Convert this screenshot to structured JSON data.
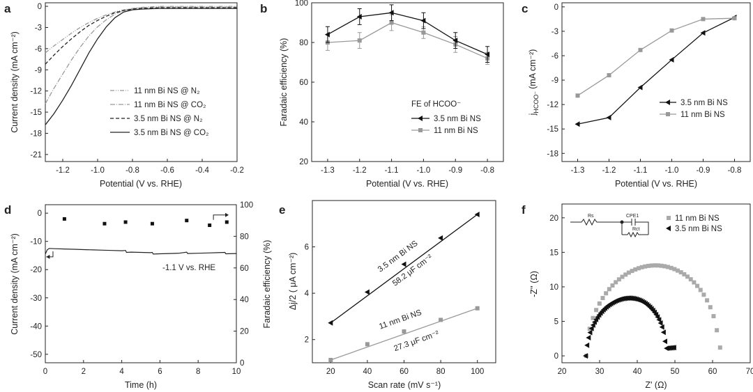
{
  "chart_data": [
    {
      "panel": "a",
      "type": "line",
      "xlabel": "Potential (V vs. RHE)",
      "ylabel": "Current density (mA cm⁻²)",
      "xlim": [
        -1.3,
        -0.2
      ],
      "ylim": [
        -22,
        0.5
      ],
      "xticks": [
        -1.2,
        -1.0,
        -0.8,
        -0.6,
        -0.4,
        -0.2
      ],
      "xtick_labels": [
        "-1.2",
        "-1.0",
        "-0.8",
        "-0.6",
        "-0.4",
        "-0.2"
      ],
      "yticks": [
        0,
        -3,
        -6,
        -9,
        -12,
        -15,
        -18,
        -21
      ],
      "ytick_labels": [
        "0",
        "-3",
        "-6",
        "-9",
        "-12",
        "-15",
        "-18",
        "-21"
      ],
      "legend": "bottom-right",
      "series": [
        {
          "name": "11 nm Bi NS @ N₂",
          "color": "#999999",
          "dash": "6,2,1,2,1,2",
          "x": [
            -1.3,
            -1.25,
            -1.2,
            -1.15,
            -1.1,
            -1.05,
            -1.0,
            -0.95,
            -0.9,
            -0.85,
            -0.8,
            -0.75,
            -0.7,
            -0.65,
            -0.6,
            -0.5,
            -0.4,
            -0.3,
            -0.2
          ],
          "y": [
            -6.6,
            -5.6,
            -4.7,
            -3.8,
            -3.0,
            -2.3,
            -1.7,
            -1.2,
            -0.8,
            -0.5,
            -0.3,
            -0.15,
            -0.08,
            0.0,
            0.0,
            0.0,
            0.0,
            0.0,
            0.0
          ]
        },
        {
          "name": "11 nm Bi NS @ CO₂",
          "color": "#999999",
          "dash": "7,2,1,2",
          "x": [
            -1.3,
            -1.25,
            -1.2,
            -1.15,
            -1.1,
            -1.05,
            -1.0,
            -0.95,
            -0.9,
            -0.85,
            -0.8,
            -0.75,
            -0.7,
            -0.65,
            -0.6,
            -0.5,
            -0.4,
            -0.3,
            -0.2
          ],
          "y": [
            -13.8,
            -11.6,
            -9.6,
            -7.6,
            -5.8,
            -4.2,
            -2.9,
            -1.9,
            -1.1,
            -0.6,
            -0.35,
            -0.2,
            -0.12,
            -0.1,
            -0.1,
            -0.1,
            -0.1,
            -0.1,
            -0.1
          ]
        },
        {
          "name": "3.5  nm Bi NS @ N₂",
          "color": "#222222",
          "dash": "5,3",
          "x": [
            -1.3,
            -1.25,
            -1.2,
            -1.15,
            -1.1,
            -1.05,
            -1.0,
            -0.95,
            -0.9,
            -0.85,
            -0.8,
            -0.75,
            -0.7,
            -0.65,
            -0.6,
            -0.5,
            -0.4,
            -0.3,
            -0.2
          ],
          "y": [
            -8.2,
            -6.9,
            -5.7,
            -4.6,
            -3.6,
            -2.7,
            -2.0,
            -1.4,
            -0.9,
            -0.6,
            -0.4,
            -0.3,
            -0.25,
            -0.2,
            -0.2,
            -0.2,
            -0.2,
            -0.2,
            -0.2
          ]
        },
        {
          "name": "3.5  nm Bi NS @ CO₂",
          "color": "#222222",
          "dash": "",
          "x": [
            -1.3,
            -1.25,
            -1.2,
            -1.15,
            -1.1,
            -1.05,
            -1.0,
            -0.95,
            -0.9,
            -0.85,
            -0.8,
            -0.75,
            -0.7,
            -0.65,
            -0.6,
            -0.5,
            -0.4,
            -0.3,
            -0.2
          ],
          "y": [
            -16.8,
            -15.2,
            -13.3,
            -11.2,
            -8.9,
            -6.6,
            -4.6,
            -2.9,
            -1.6,
            -0.8,
            -0.5,
            -0.4,
            -0.35,
            -0.3,
            -0.3,
            -0.3,
            -0.3,
            -0.3,
            -0.3
          ]
        }
      ]
    },
    {
      "panel": "b",
      "type": "line",
      "xlabel": "Potential (V vs. RHE)",
      "ylabel": "Faradaic efficiency (%)",
      "xlim": [
        -1.35,
        -0.75
      ],
      "ylim": [
        20,
        100
      ],
      "xticks": [
        -1.3,
        -1.2,
        -1.1,
        -1.0,
        -0.9,
        -0.8
      ],
      "xtick_labels": [
        "-1.3",
        "-1.2",
        "-1.1",
        "-1.0",
        "-0.9",
        "-0.8"
      ],
      "yticks": [
        20,
        40,
        60,
        80,
        100
      ],
      "ytick_labels": [
        "20",
        "40",
        "60",
        "80",
        "100"
      ],
      "legend_title": "FE of HCOO⁻",
      "legend": "center-right",
      "series": [
        {
          "name": "3.5 nm Bi NS",
          "color": "#111111",
          "marker": "triangle-left",
          "x": [
            -1.3,
            -1.2,
            -1.1,
            -1.0,
            -0.9,
            -0.8
          ],
          "y": [
            84,
            93,
            95,
            91,
            81,
            74
          ],
          "err": [
            4,
            4,
            4,
            4,
            4,
            4
          ]
        },
        {
          "name": "11 nm Bi NS",
          "color": "#999999",
          "marker": "square",
          "x": [
            -1.3,
            -1.2,
            -1.1,
            -1.0,
            -0.9,
            -0.8
          ],
          "y": [
            80,
            81,
            90,
            85,
            79,
            72
          ],
          "err": [
            4,
            4,
            4,
            3,
            4,
            3
          ]
        }
      ]
    },
    {
      "panel": "c",
      "type": "line",
      "xlabel": "Potential (V vs. RHE)",
      "ylabel": "j",
      "ylabel_sub": "HCOO⁻",
      "ylabel_unit": "(mA cm⁻²)",
      "xlim": [
        -1.35,
        -0.75
      ],
      "ylim": [
        -19,
        0.5
      ],
      "xticks": [
        -1.3,
        -1.2,
        -1.1,
        -1.0,
        -0.9,
        -0.8
      ],
      "xtick_labels": [
        "-1.3",
        "-1.2",
        "-1.1",
        "-1.0",
        "-0.9",
        "-0.8"
      ],
      "yticks": [
        0,
        -3,
        -6,
        -9,
        -12,
        -15,
        -18
      ],
      "ytick_labels": [
        "0",
        "-3",
        "-6",
        "-9",
        "-12",
        "-15",
        "-18"
      ],
      "legend": "center-right",
      "series": [
        {
          "name": "3.5 nm Bi NS",
          "color": "#111111",
          "marker": "triangle-left",
          "x": [
            -1.3,
            -1.2,
            -1.1,
            -1.0,
            -0.9,
            -0.8
          ],
          "y": [
            -14.4,
            -13.6,
            -9.9,
            -6.5,
            -3.2,
            -1.3
          ]
        },
        {
          "name": "11 nm Bi NS",
          "color": "#999999",
          "marker": "square",
          "x": [
            -1.3,
            -1.2,
            -1.1,
            -1.0,
            -0.9,
            -0.8
          ],
          "y": [
            -10.9,
            -8.4,
            -5.3,
            -2.9,
            -1.5,
            -1.4
          ]
        }
      ]
    },
    {
      "panel": "d",
      "type": "line",
      "xlabel": "Time (h)",
      "ylabel": "Current density (mA cm⁻²)",
      "ylabel_right": "Faradaic efficiency (%)",
      "xlim": [
        0,
        10
      ],
      "ylim": [
        -53,
        3
      ],
      "ylim_right": [
        0,
        100
      ],
      "xticks": [
        0,
        2,
        4,
        6,
        8,
        10
      ],
      "xtick_labels": [
        "0",
        "2",
        "4",
        "6",
        "8",
        "10"
      ],
      "yticks": [
        0,
        -10,
        -20,
        -30,
        -40,
        -50
      ],
      "ytick_labels": [
        "0",
        "-10",
        "-20",
        "-30",
        "-40",
        "-50"
      ],
      "yticks_right": [
        0,
        20,
        40,
        60,
        80,
        100
      ],
      "ytick_labels_right": [
        "0",
        "20",
        "40",
        "60",
        "80",
        "100"
      ],
      "annotation": "-1.1 V vs. RHE",
      "current": {
        "x": [
          0,
          0.1,
          0.2,
          0.5,
          1.0,
          1.5,
          2.0,
          2.5,
          3.0,
          3.5,
          4.0,
          4.2,
          4.25,
          4.5,
          5.0,
          5.5,
          5.6,
          5.65,
          6.0,
          6.5,
          7.0,
          7.4,
          7.45,
          8.0,
          8.5,
          9.0,
          9.4,
          9.45,
          10
        ],
        "y": [
          -14.5,
          -13.0,
          -12.5,
          -12.6,
          -12.7,
          -12.8,
          -12.9,
          -13.0,
          -13.1,
          -13.2,
          -13.3,
          -13.2,
          -13.9,
          -13.8,
          -13.9,
          -14.0,
          -13.9,
          -14.5,
          -14.4,
          -14.3,
          -14.2,
          -13.8,
          -14.3,
          -14.2,
          -14.1,
          -14.0,
          -13.9,
          -14.4,
          -14.3
        ]
      },
      "fe": {
        "x": [
          1.0,
          3.1,
          4.2,
          5.6,
          7.4,
          8.6,
          9.5
        ],
        "y": [
          91,
          88,
          89,
          88,
          90,
          87,
          89
        ]
      }
    },
    {
      "panel": "e",
      "type": "scatter",
      "xlabel": "Scan rate (mV s⁻¹)",
      "ylabel": "Δj/2 ( μA cm⁻²)",
      "xlim": [
        10,
        110
      ],
      "ylim": [
        1.0,
        8.0
      ],
      "xticks": [
        20,
        40,
        60,
        80,
        100
      ],
      "xtick_labels": [
        "20",
        "40",
        "60",
        "80",
        "100"
      ],
      "yticks": [
        2,
        4,
        6
      ],
      "ytick_labels": [
        "2",
        "4",
        "6"
      ],
      "series": [
        {
          "name": "3.5 nm Bi NS",
          "slope_label": "58.2 μF cm⁻²",
          "color": "#111111",
          "marker": "triangle-left",
          "x": [
            20,
            40,
            60,
            80,
            100
          ],
          "y": [
            2.72,
            4.05,
            5.25,
            6.38,
            7.4
          ],
          "fit": [
            [
              20,
              2.72
            ],
            [
              100,
              7.4
            ]
          ]
        },
        {
          "name": "11 nm Bi NS",
          "slope_label": "27.3 μF cm⁻²",
          "color": "#999999",
          "marker": "square",
          "x": [
            20,
            40,
            60,
            80,
            100
          ],
          "y": [
            1.12,
            1.8,
            2.35,
            2.85,
            3.35
          ],
          "fit": [
            [
              20,
              1.12
            ],
            [
              100,
              3.35
            ]
          ]
        }
      ]
    },
    {
      "panel": "f",
      "type": "scatter",
      "xlabel": "Z' (Ω)",
      "ylabel": "-Z'' (Ω)",
      "xlim": [
        20,
        70
      ],
      "ylim": [
        -1,
        22
      ],
      "xticks": [
        20,
        30,
        40,
        50,
        60,
        70
      ],
      "xtick_labels": [
        "20",
        "30",
        "40",
        "50",
        "60",
        "70"
      ],
      "yticks": [
        0,
        5,
        10,
        15,
        20
      ],
      "ytick_labels": [
        "0",
        "5",
        "10",
        "15",
        "20"
      ],
      "legend": "top-right",
      "circuit_labels": [
        "Rs",
        "CPE1",
        "Rct"
      ],
      "series": [
        {
          "name": "11 nm Bi NS",
          "color": "#aaaaaa",
          "marker": "square",
          "arc_center": 44.0,
          "arc_radius": 17.5,
          "arc_height": 12.5,
          "x_min": 26.5,
          "x_max": 62.0,
          "count": 42
        },
        {
          "name": "3.5 nm Bi NS",
          "color": "#111111",
          "marker": "triangle-left",
          "arc_center": 37.0,
          "arc_radius": 10.5,
          "arc_height": 7.8,
          "x_min": 26.3,
          "x_max": 49.8,
          "count": 60
        }
      ]
    }
  ]
}
